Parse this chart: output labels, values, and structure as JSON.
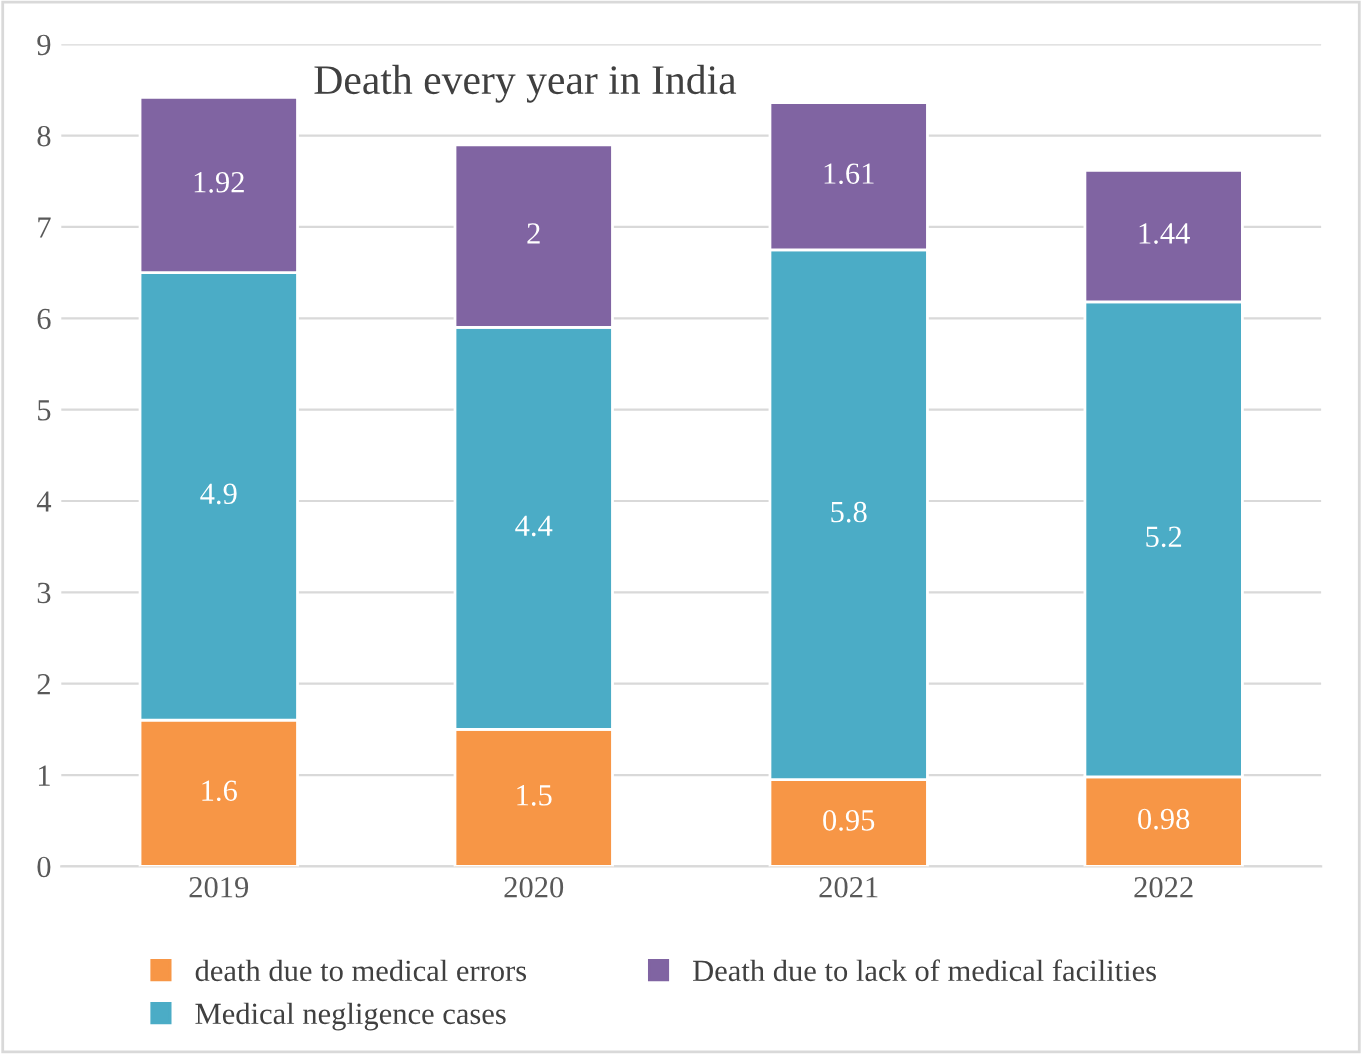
{
  "chart_data": {
    "type": "bar",
    "stacked": true,
    "title": "Death every year in India",
    "categories": [
      "2019",
      "2020",
      "2021",
      "2022"
    ],
    "series": [
      {
        "name": "death due to medical errors",
        "color": "#f79646",
        "values": [
          1.6,
          1.5,
          0.95,
          0.98
        ]
      },
      {
        "name": "Medical negligence cases",
        "color": "#4bacc6",
        "values": [
          4.9,
          4.4,
          5.8,
          5.2
        ]
      },
      {
        "name": "Death due to lack of medical facilities",
        "color": "#8064a2",
        "values": [
          1.92,
          2,
          1.61,
          1.44
        ]
      }
    ],
    "ylim": [
      0,
      9
    ],
    "yticks": [
      0,
      1,
      2,
      3,
      4,
      5,
      6,
      7,
      8,
      9
    ],
    "grid": "y",
    "legend": "bottom",
    "data_labels": true
  }
}
